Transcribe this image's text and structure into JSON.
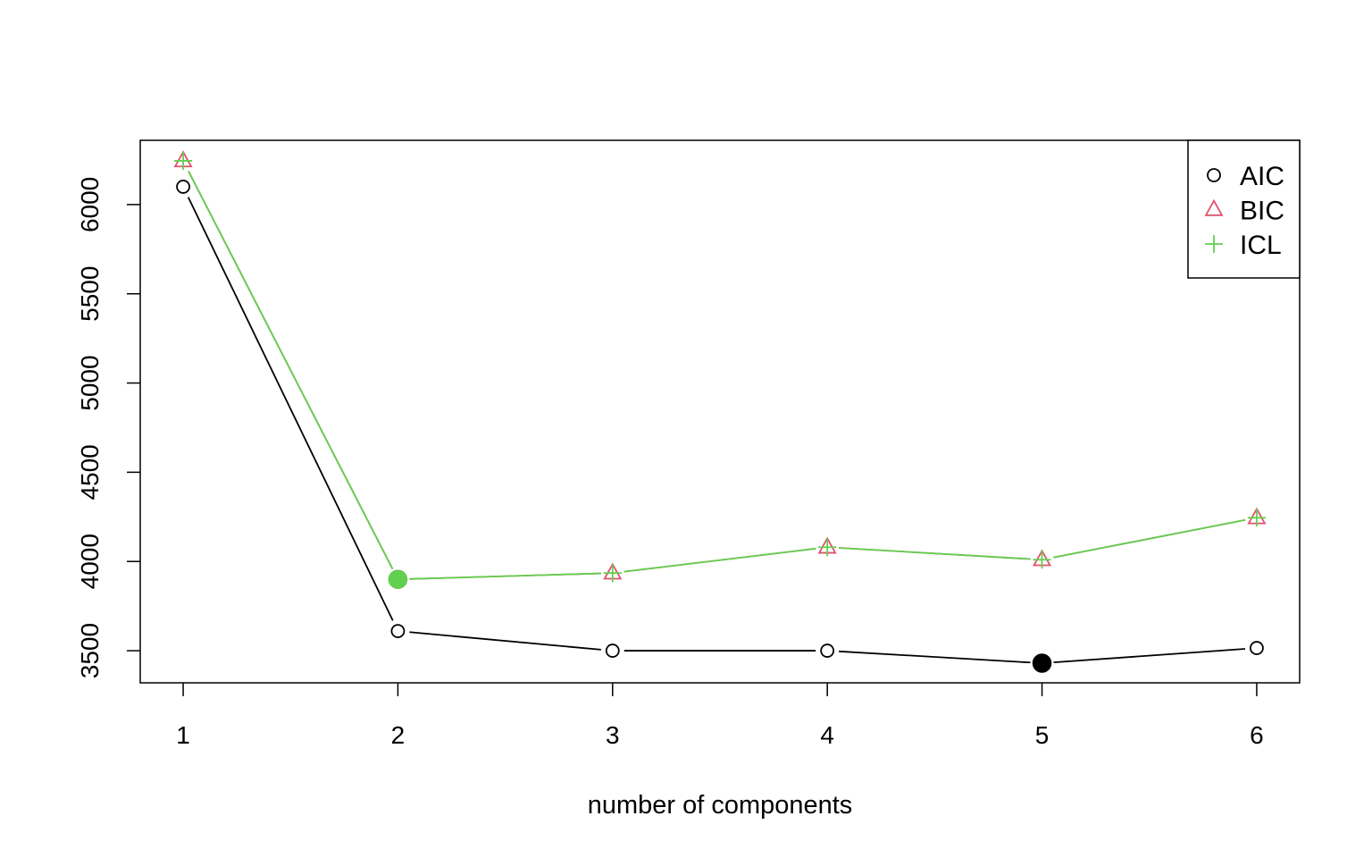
{
  "chart_data": {
    "type": "line",
    "title": "",
    "xlabel": "number of components",
    "ylabel": "",
    "x": [
      1,
      2,
      3,
      4,
      5,
      6
    ],
    "xlim": [
      0.8,
      6.2
    ],
    "ylim": [
      3320,
      6360
    ],
    "y_ticks": [
      3500,
      4000,
      4500,
      5000,
      5500,
      6000
    ],
    "grid": false,
    "legend_position": "top-right",
    "series": [
      {
        "name": "AIC",
        "marker": "open-circle",
        "color": "#000000",
        "values": [
          6100,
          3610,
          3500,
          3500,
          3430,
          3515
        ],
        "best_index": 4
      },
      {
        "name": "BIC",
        "marker": "open-triangle",
        "color": "#DF536B",
        "values": [
          6245,
          3900,
          3935,
          4080,
          4010,
          4245
        ],
        "best_index": 1
      },
      {
        "name": "ICL",
        "marker": "plus",
        "color": "#61D04F",
        "values": [
          6245,
          3900,
          3935,
          4080,
          4010,
          4245
        ],
        "best_index": 1
      }
    ]
  }
}
